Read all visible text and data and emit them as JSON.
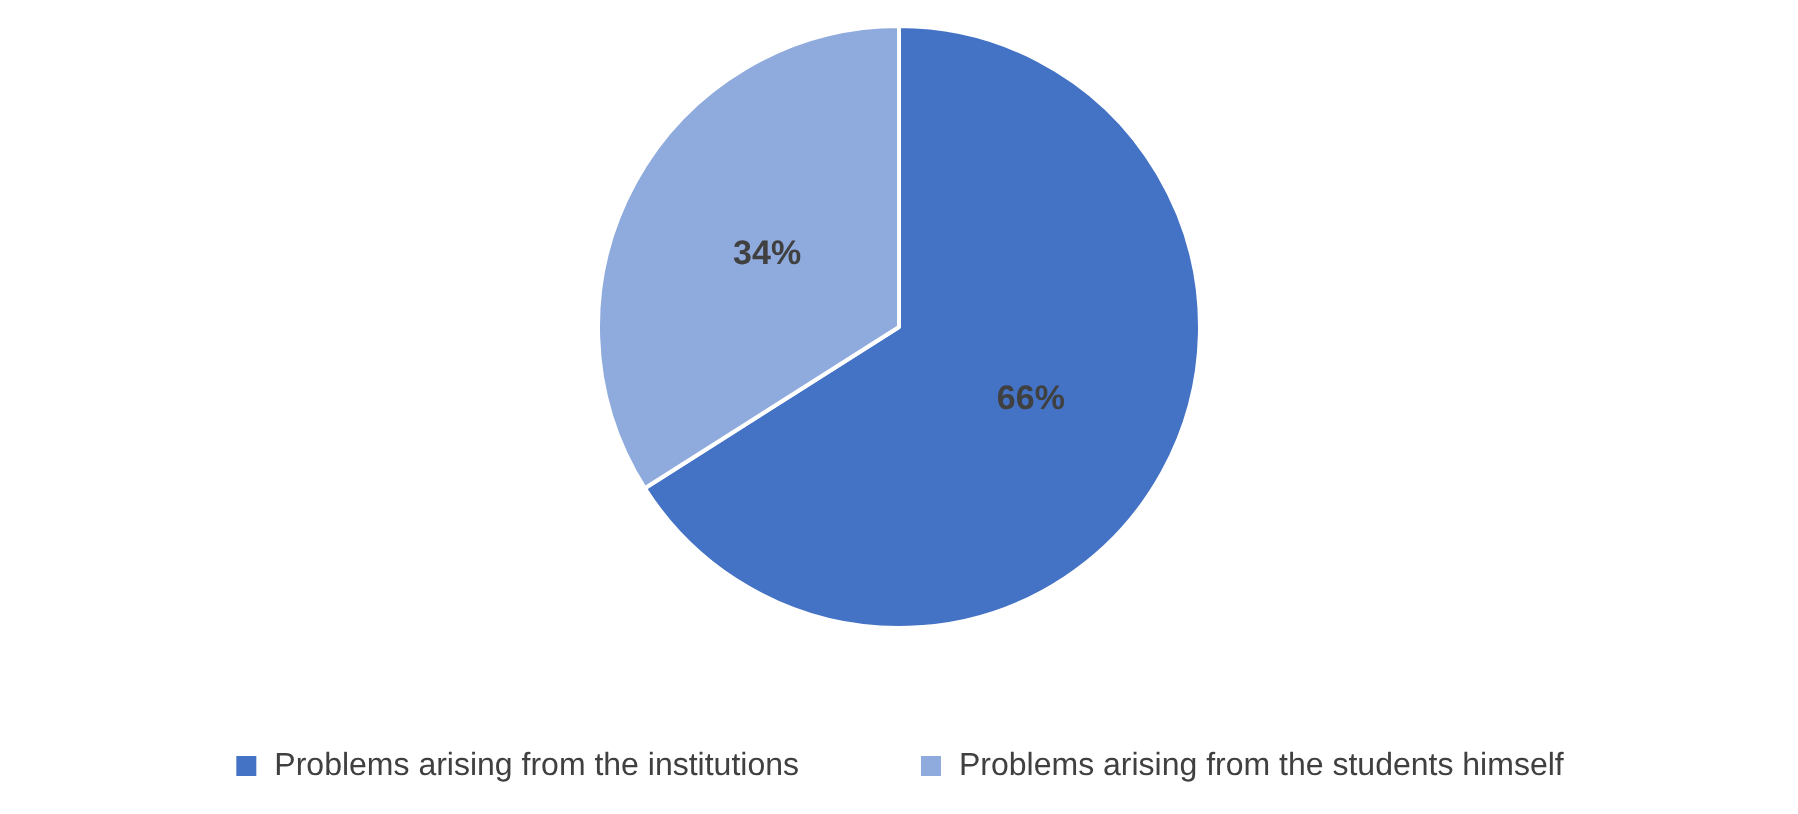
{
  "chart_data": {
    "type": "pie",
    "categories": [
      "Problems arising from the institutions",
      "Problems arising from the students himself"
    ],
    "values": [
      66,
      34
    ],
    "colors": [
      "#4472c4",
      "#8faadc"
    ],
    "value_labels": [
      "66%",
      "34%"
    ],
    "legend": "bottom"
  }
}
